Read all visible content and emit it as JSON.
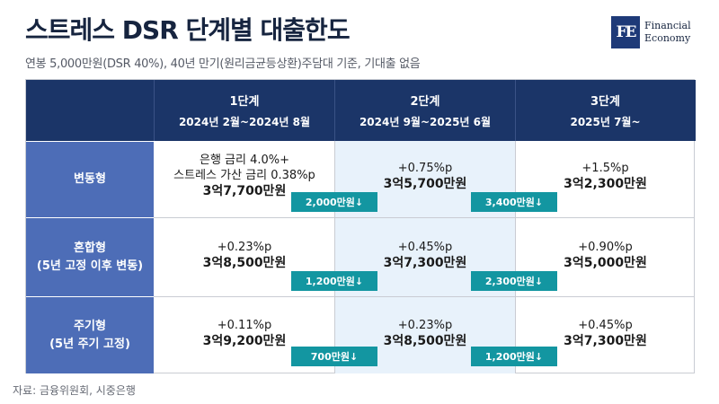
{
  "header": {
    "title": "스트레스 DSR 단계별 대출한도",
    "subtitle": "연봉 5,000만원(DSR 40%), 40년 만기(원리금균등상환)주담대 기준, 기대출 없음"
  },
  "logo": {
    "mark": "FE",
    "line1": "Financial",
    "line2": "Economy"
  },
  "table": {
    "columns": [
      {
        "stage": "1단계",
        "period": "2024년 2월~2024년 8월"
      },
      {
        "stage": "2단계",
        "period": "2024년 9월~2025년 6월"
      },
      {
        "stage": "3단계",
        "period": "2025년 7월~"
      }
    ],
    "rows": [
      {
        "type": "변동형",
        "sub": "",
        "cells": [
          {
            "rate": "은행 금리 4.0%+",
            "rate2": "스트레스 가산 금리 0.38%p",
            "limit": "3억7,700만원"
          },
          {
            "rate": "+0.75%p",
            "limit": "3억5,700만원"
          },
          {
            "rate": "+1.5%p",
            "limit": "3억2,300만원"
          }
        ],
        "diffs": [
          "2,000만원↓",
          "3,400만원↓"
        ]
      },
      {
        "type": "혼합형",
        "sub": "(5년 고정 이후 변동)",
        "cells": [
          {
            "rate": "+0.23%p",
            "limit": "3억8,500만원"
          },
          {
            "rate": "+0.45%p",
            "limit": "3억7,300만원"
          },
          {
            "rate": "+0.90%p",
            "limit": "3억5,000만원"
          }
        ],
        "diffs": [
          "1,200만원↓",
          "2,300만원↓"
        ]
      },
      {
        "type": "주기형",
        "sub": "(5년 주기 고정)",
        "cells": [
          {
            "rate": "+0.11%p",
            "limit": "3억9,200만원"
          },
          {
            "rate": "+0.23%p",
            "limit": "3억8,500만원"
          },
          {
            "rate": "+0.45%p",
            "limit": "3억7,300만원"
          }
        ],
        "diffs": [
          "700만원↓",
          "1,200만원↓"
        ]
      }
    ]
  },
  "source": "자료: 금융위원회, 시중은행",
  "colors": {
    "header_bg": "#1b3568",
    "row_head_bg": "#4d6db7",
    "badge_bg": "#1396a1",
    "mid_col_bg": "#e8f2fb"
  }
}
